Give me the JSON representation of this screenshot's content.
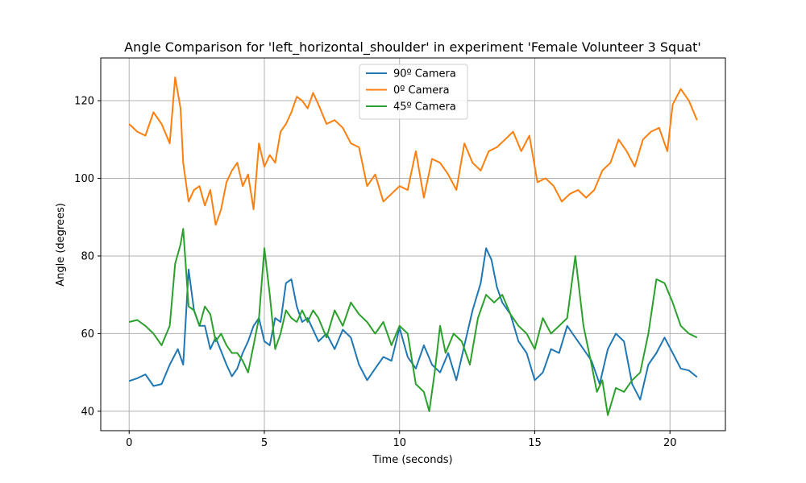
{
  "chart_data": {
    "type": "line",
    "title": "Angle Comparison for 'left_horizontal_shoulder' in experiment 'Female Volunteer 3 Squat'",
    "xlabel": "Time (seconds)",
    "ylabel": "Angle (degrees)",
    "xlim": [
      -1.05,
      22.05
    ],
    "ylim": [
      35.0,
      131.0
    ],
    "xticks": [
      0,
      5,
      10,
      15,
      20
    ],
    "yticks": [
      40,
      60,
      80,
      100,
      120
    ],
    "grid": true,
    "legend_position": "top-center",
    "series": [
      {
        "name": "90º Camera",
        "color": "#1f77b4",
        "x": [
          0.0,
          0.3,
          0.6,
          0.9,
          1.2,
          1.5,
          1.8,
          2.0,
          2.2,
          2.4,
          2.6,
          2.8,
          3.0,
          3.2,
          3.4,
          3.6,
          3.8,
          4.0,
          4.2,
          4.4,
          4.6,
          4.8,
          5.0,
          5.2,
          5.4,
          5.6,
          5.8,
          6.0,
          6.2,
          6.4,
          6.6,
          6.8,
          7.0,
          7.3,
          7.6,
          7.9,
          8.2,
          8.5,
          8.8,
          9.1,
          9.4,
          9.7,
          10.0,
          10.3,
          10.6,
          10.9,
          11.2,
          11.5,
          11.8,
          12.1,
          12.4,
          12.7,
          13.0,
          13.2,
          13.4,
          13.6,
          13.8,
          14.1,
          14.4,
          14.7,
          15.0,
          15.3,
          15.6,
          15.9,
          16.2,
          16.5,
          16.8,
          17.1,
          17.4,
          17.7,
          18.0,
          18.3,
          18.6,
          18.9,
          19.2,
          19.5,
          19.8,
          20.1,
          20.4,
          20.7,
          21.0
        ],
        "values": [
          47.8,
          48.5,
          49.5,
          46.5,
          47.0,
          52.0,
          56.0,
          52.0,
          76.5,
          66.0,
          62.0,
          62.0,
          56.0,
          59.0,
          55.5,
          52.0,
          49.0,
          51.0,
          55.0,
          58.0,
          62.0,
          64.0,
          58.0,
          57.0,
          64.0,
          63.0,
          73.0,
          74.0,
          67.0,
          63.0,
          64.0,
          61.0,
          58.0,
          60.0,
          56.0,
          61.0,
          59.0,
          52.0,
          48.0,
          51.0,
          54.0,
          53.0,
          61.5,
          54.0,
          51.0,
          57.0,
          52.0,
          50.0,
          55.0,
          48.0,
          57.0,
          66.0,
          73.0,
          82.0,
          79.0,
          72.0,
          68.0,
          65.0,
          58.0,
          55.0,
          48.0,
          50.0,
          56.0,
          55.0,
          62.0,
          59.0,
          56.0,
          53.0,
          47.0,
          56.0,
          60.0,
          58.0,
          47.0,
          43.0,
          52.0,
          55.0,
          59.0,
          55.0,
          51.0,
          50.5,
          48.8
        ]
      },
      {
        "name": "0º Camera",
        "color": "#ff7f0e",
        "x": [
          0.0,
          0.3,
          0.6,
          0.9,
          1.2,
          1.5,
          1.7,
          1.9,
          2.0,
          2.2,
          2.4,
          2.6,
          2.8,
          3.0,
          3.2,
          3.4,
          3.6,
          3.8,
          4.0,
          4.2,
          4.4,
          4.6,
          4.8,
          5.0,
          5.2,
          5.4,
          5.6,
          5.8,
          6.0,
          6.2,
          6.4,
          6.6,
          6.8,
          7.0,
          7.3,
          7.6,
          7.9,
          8.2,
          8.5,
          8.8,
          9.1,
          9.4,
          9.7,
          10.0,
          10.3,
          10.6,
          10.9,
          11.2,
          11.5,
          11.8,
          12.1,
          12.4,
          12.7,
          13.0,
          13.3,
          13.6,
          13.9,
          14.2,
          14.5,
          14.8,
          15.1,
          15.4,
          15.7,
          16.0,
          16.3,
          16.6,
          16.9,
          17.2,
          17.5,
          17.8,
          18.1,
          18.4,
          18.7,
          19.0,
          19.3,
          19.6,
          19.9,
          20.1,
          20.4,
          20.7,
          21.0
        ],
        "values": [
          114.0,
          112.0,
          111.0,
          117.0,
          114.0,
          109.0,
          126.0,
          118.0,
          104.0,
          94.0,
          97.0,
          98.0,
          93.0,
          97.0,
          88.0,
          92.0,
          99.0,
          102.0,
          104.0,
          98.0,
          101.0,
          92.0,
          109.0,
          103.0,
          106.0,
          104.0,
          112.0,
          114.0,
          117.0,
          121.0,
          120.0,
          118.0,
          122.0,
          119.0,
          114.0,
          115.0,
          113.0,
          109.0,
          108.0,
          98.0,
          101.0,
          94.0,
          96.0,
          98.0,
          97.0,
          107.0,
          95.0,
          105.0,
          104.0,
          101.0,
          97.0,
          109.0,
          104.0,
          102.0,
          107.0,
          108.0,
          110.0,
          112.0,
          107.0,
          111.0,
          99.0,
          100.0,
          98.0,
          94.0,
          96.0,
          97.0,
          95.0,
          97.0,
          102.0,
          104.0,
          110.0,
          107.0,
          103.0,
          110.0,
          112.0,
          113.0,
          107.0,
          119.0,
          123.0,
          120.0,
          115.0
        ]
      },
      {
        "name": "45º Camera",
        "color": "#2ca02c",
        "x": [
          0.0,
          0.3,
          0.6,
          0.9,
          1.2,
          1.5,
          1.7,
          1.9,
          2.0,
          2.2,
          2.4,
          2.6,
          2.8,
          3.0,
          3.2,
          3.4,
          3.6,
          3.8,
          4.0,
          4.2,
          4.4,
          4.6,
          4.8,
          5.0,
          5.2,
          5.4,
          5.6,
          5.8,
          6.0,
          6.2,
          6.4,
          6.6,
          6.8,
          7.0,
          7.3,
          7.6,
          7.9,
          8.2,
          8.5,
          8.8,
          9.1,
          9.4,
          9.7,
          10.0,
          10.3,
          10.6,
          10.9,
          11.1,
          11.3,
          11.5,
          11.7,
          12.0,
          12.3,
          12.6,
          12.9,
          13.2,
          13.5,
          13.8,
          14.1,
          14.4,
          14.7,
          15.0,
          15.3,
          15.6,
          15.9,
          16.2,
          16.5,
          16.8,
          17.1,
          17.3,
          17.5,
          17.7,
          18.0,
          18.3,
          18.6,
          18.9,
          19.2,
          19.5,
          19.8,
          20.1,
          20.4,
          20.7,
          21.0
        ],
        "values": [
          63.0,
          63.5,
          62.0,
          60.0,
          57.0,
          62.0,
          78.0,
          83.0,
          87.0,
          67.0,
          66.0,
          62.0,
          67.0,
          65.0,
          58.0,
          60.0,
          57.0,
          55.0,
          55.0,
          53.0,
          50.0,
          57.0,
          64.0,
          82.0,
          70.0,
          56.0,
          60.0,
          66.0,
          64.0,
          63.0,
          66.0,
          63.0,
          66.0,
          64.0,
          59.0,
          66.0,
          62.0,
          68.0,
          65.0,
          63.0,
          60.0,
          63.0,
          57.0,
          62.0,
          60.0,
          47.0,
          45.0,
          40.0,
          50.0,
          62.0,
          55.0,
          60.0,
          58.0,
          52.0,
          64.0,
          70.0,
          68.0,
          70.0,
          65.0,
          62.0,
          60.0,
          56.0,
          64.0,
          60.0,
          62.0,
          64.0,
          80.0,
          62.0,
          52.0,
          45.0,
          48.0,
          39.0,
          46.0,
          45.0,
          48.0,
          50.0,
          60.0,
          74.0,
          73.0,
          68.0,
          62.0,
          60.0,
          59.0
        ]
      }
    ]
  }
}
